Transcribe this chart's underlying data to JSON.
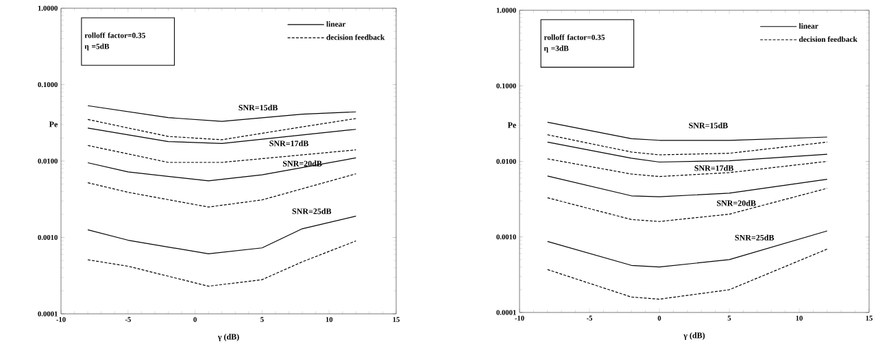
{
  "chart_data": [
    {
      "type": "line",
      "xlabel": "γ (dB)",
      "ylabel": "Pe",
      "log": "y",
      "legend": "top right",
      "annotations": [
        "rolloff factor=0.35",
        "η =5dB",
        "SNR=15dB",
        "SNR=17dB",
        "SNR=20dB",
        "SNR=25dB"
      ],
      "xlim": [
        -10,
        15
      ],
      "xticks": [
        -10,
        -5,
        0,
        5,
        10,
        15
      ],
      "ylim": [
        0.0001,
        1.0
      ],
      "yticks": [
        {
          "value": 0.0001,
          "label": "0.0001"
        },
        {
          "value": 0.001,
          "label": "0.0010"
        },
        {
          "value": 0.01,
          "label": "0.0100"
        },
        {
          "value": 0.1,
          "label": "0.1000"
        },
        {
          "value": 1.0,
          "label": "1.0000"
        }
      ],
      "series": [
        {
          "name": "linear",
          "color": "#000000",
          "line_style": "solid",
          "x": [
            -8,
            -2,
            2,
            8,
            12
          ],
          "values": [
            0.053,
            0.037,
            0.033,
            0.041,
            0.044
          ]
        },
        {
          "name": "decision feedback",
          "color": "#000000",
          "line_style": "dashed",
          "x": [
            -8,
            -2,
            2,
            8,
            12
          ],
          "values": [
            0.035,
            0.021,
            0.019,
            0.028,
            0.036
          ]
        },
        {
          "color": "#000000",
          "line_style": "solid",
          "x": [
            -8,
            -2,
            2,
            12
          ],
          "values": [
            0.027,
            0.018,
            0.017,
            0.026
          ]
        },
        {
          "color": "#000000",
          "line_style": "dashed",
          "x": [
            -8,
            -2,
            2,
            12
          ],
          "values": [
            0.016,
            0.0096,
            0.0096,
            0.014
          ]
        },
        {
          "color": "#000000",
          "line_style": "solid",
          "x": [
            -8,
            -5,
            1,
            5,
            12
          ],
          "values": [
            0.0095,
            0.0072,
            0.0055,
            0.0066,
            0.011
          ]
        },
        {
          "color": "#000000",
          "line_style": "dashed",
          "x": [
            -8,
            -5,
            1,
            5,
            12
          ],
          "values": [
            0.0052,
            0.0039,
            0.0025,
            0.0031,
            0.0068
          ]
        },
        {
          "color": "#000000",
          "line_style": "solid",
          "x": [
            -8,
            -5,
            1,
            5,
            8,
            12
          ],
          "values": [
            0.00126,
            0.00092,
            0.00061,
            0.00073,
            0.0013,
            0.0019
          ]
        },
        {
          "color": "#000000",
          "line_style": "dashed",
          "x": [
            -8,
            -5,
            1,
            5,
            8,
            12
          ],
          "values": [
            0.00051,
            0.00042,
            0.00023,
            0.00028,
            0.00048,
            0.0009
          ]
        }
      ]
    },
    {
      "type": "line",
      "xlabel": "γ (dB)",
      "ylabel": "Pe",
      "log": "y",
      "legend": "top right",
      "annotations": [
        "rolloff factor=0.35",
        "η =3dB",
        "SNR=15dB",
        "SNR=17dB",
        "SNR=20dB",
        "SNR=25dB"
      ],
      "xlim": [
        -10,
        15
      ],
      "xticks": [
        -10,
        -5,
        0,
        5,
        10,
        15
      ],
      "ylim": [
        0.0001,
        1.0
      ],
      "yticks": [
        {
          "value": 0.0001,
          "label": "0.0001"
        },
        {
          "value": 0.001,
          "label": "0.0010"
        },
        {
          "value": 0.01,
          "label": "0.0100"
        },
        {
          "value": 0.1,
          "label": "0.1000"
        },
        {
          "value": 1.0,
          "label": "1.0000"
        }
      ],
      "series": [
        {
          "name": "linear",
          "color": "#000000",
          "line_style": "solid",
          "x": [
            -8,
            -2,
            0,
            5,
            12
          ],
          "values": [
            0.033,
            0.02,
            0.019,
            0.019,
            0.021
          ]
        },
        {
          "name": "decision feedback",
          "color": "#000000",
          "line_style": "dashed",
          "x": [
            -8,
            -2,
            0,
            5,
            12
          ],
          "values": [
            0.0225,
            0.0133,
            0.0122,
            0.0128,
            0.018
          ]
        },
        {
          "color": "#000000",
          "line_style": "solid",
          "x": [
            -8,
            -2,
            0,
            5,
            12
          ],
          "values": [
            0.018,
            0.011,
            0.0098,
            0.0102,
            0.0124
          ]
        },
        {
          "color": "#000000",
          "line_style": "dashed",
          "x": [
            -8,
            -2,
            0,
            5,
            12
          ],
          "values": [
            0.0108,
            0.0068,
            0.0063,
            0.0071,
            0.01
          ]
        },
        {
          "color": "#000000",
          "line_style": "solid",
          "x": [
            -8,
            -2,
            0,
            5,
            12
          ],
          "values": [
            0.0064,
            0.0035,
            0.0034,
            0.0038,
            0.0058
          ]
        },
        {
          "color": "#000000",
          "line_style": "dashed",
          "x": [
            -8,
            -2,
            0,
            5,
            12
          ],
          "values": [
            0.0033,
            0.0017,
            0.0016,
            0.002,
            0.0044
          ]
        },
        {
          "color": "#000000",
          "line_style": "solid",
          "x": [
            -8,
            -2,
            0,
            5,
            12
          ],
          "values": [
            0.00087,
            0.00042,
            0.0004,
            0.0005,
            0.0012
          ]
        },
        {
          "color": "#000000",
          "line_style": "dashed",
          "x": [
            -8,
            -2,
            0,
            5,
            12
          ],
          "values": [
            0.00037,
            0.00016,
            0.00015,
            0.0002,
            0.00069
          ]
        }
      ]
    }
  ]
}
